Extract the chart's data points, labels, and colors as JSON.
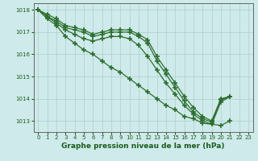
{
  "lines": [
    {
      "x": [
        0,
        1,
        2,
        3,
        4,
        5,
        6,
        7,
        8,
        9,
        10,
        11,
        12,
        13,
        14,
        15,
        16,
        17,
        18,
        19,
        20,
        21
      ],
      "y": [
        1018.0,
        1017.6,
        1017.3,
        1016.8,
        1016.5,
        1016.2,
        1016.0,
        1015.7,
        1015.4,
        1015.2,
        1014.9,
        1014.6,
        1014.3,
        1014.0,
        1013.7,
        1013.5,
        1013.2,
        1013.1,
        1012.9,
        1012.85,
        1012.8,
        1013.0
      ]
    },
    {
      "x": [
        0,
        1,
        2,
        3,
        4,
        5,
        6,
        7,
        8,
        9,
        10,
        11,
        12,
        13,
        14,
        15,
        16,
        17,
        18,
        19,
        20,
        21
      ],
      "y": [
        1018.0,
        1017.7,
        1017.4,
        1017.1,
        1016.9,
        1016.7,
        1016.6,
        1016.7,
        1016.8,
        1016.8,
        1016.7,
        1016.4,
        1015.9,
        1015.3,
        1014.7,
        1014.2,
        1013.7,
        1013.3,
        1013.0,
        1012.85,
        1013.85,
        1014.1
      ]
    },
    {
      "x": [
        0,
        1,
        2,
        3,
        4,
        5,
        6,
        7,
        8,
        9,
        10,
        11,
        12,
        13,
        14,
        15,
        16,
        17,
        18,
        19,
        20,
        21
      ],
      "y": [
        1018.0,
        1017.7,
        1017.5,
        1017.2,
        1017.1,
        1017.0,
        1016.8,
        1016.9,
        1017.0,
        1017.0,
        1017.0,
        1016.8,
        1016.5,
        1015.7,
        1015.1,
        1014.5,
        1013.9,
        1013.4,
        1013.1,
        1012.95,
        1013.95,
        1014.1
      ]
    },
    {
      "x": [
        0,
        1,
        2,
        3,
        4,
        5,
        6,
        7,
        8,
        9,
        10,
        11,
        12,
        13,
        14,
        15,
        16,
        17,
        18,
        19,
        20,
        21
      ],
      "y": [
        1018.0,
        1017.8,
        1017.6,
        1017.3,
        1017.2,
        1017.1,
        1016.9,
        1017.0,
        1017.1,
        1017.1,
        1017.1,
        1016.9,
        1016.65,
        1015.9,
        1015.3,
        1014.7,
        1014.1,
        1013.6,
        1013.2,
        1013.0,
        1014.0,
        1014.1
      ]
    }
  ],
  "line_color": "#2d6e2d",
  "marker": "+",
  "markersize": 4.0,
  "markeredgewidth": 1.2,
  "linewidth": 0.9,
  "xlim": [
    -0.5,
    23.5
  ],
  "ylim": [
    1012.5,
    1018.3
  ],
  "yticks": [
    1013,
    1014,
    1015,
    1016,
    1017,
    1018
  ],
  "xticks": [
    0,
    1,
    2,
    3,
    4,
    5,
    6,
    7,
    8,
    9,
    10,
    11,
    12,
    13,
    14,
    15,
    16,
    17,
    18,
    19,
    20,
    21,
    22,
    23
  ],
  "xlabel": "Graphe pression niveau de la mer (hPa)",
  "bg_color": "#ceeaea",
  "grid_color": "#aecece",
  "axis_color": "#666666",
  "tick_color": "#1a5c1a",
  "label_color": "#1a5c1a",
  "xlabel_fontsize": 6.5,
  "tick_fontsize": 5.0
}
